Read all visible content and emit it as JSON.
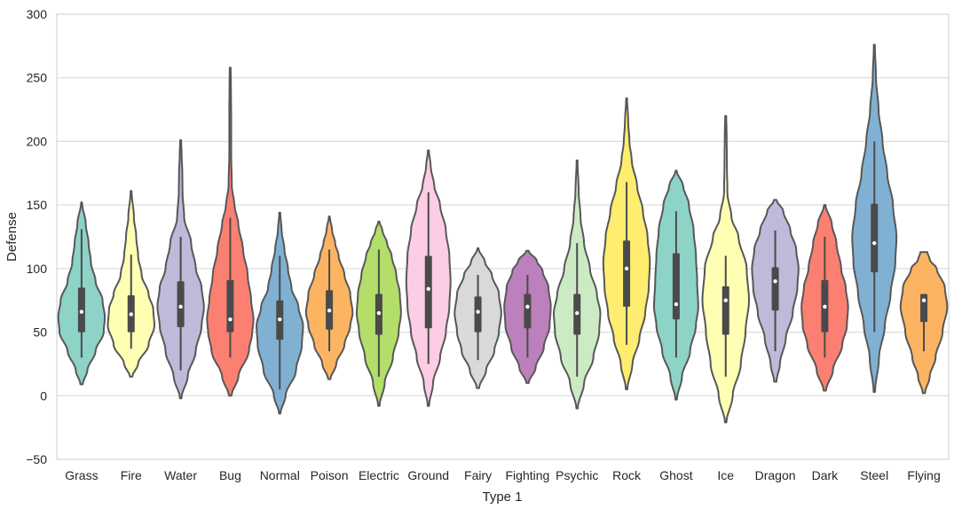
{
  "chart_data": {
    "type": "violin",
    "title": "",
    "xlabel": "Type 1",
    "ylabel": "Defense",
    "ylim": [
      -50,
      300
    ],
    "yticks": [
      -50,
      0,
      50,
      100,
      150,
      200,
      250,
      300
    ],
    "ytick_labels": [
      "−50",
      "0",
      "50",
      "100",
      "150",
      "200",
      "250",
      "300"
    ],
    "grid": true,
    "categories": [
      "Grass",
      "Fire",
      "Water",
      "Bug",
      "Normal",
      "Poison",
      "Electric",
      "Ground",
      "Fairy",
      "Fighting",
      "Psychic",
      "Rock",
      "Ghost",
      "Ice",
      "Dragon",
      "Dark",
      "Steel",
      "Flying"
    ],
    "colors": [
      "#8dd3c7",
      "#ffffb3",
      "#bebada",
      "#fb8072",
      "#80b1d3",
      "#fdb462",
      "#b3de69",
      "#fccde5",
      "#d9d9d9",
      "#bc80bd",
      "#ccebc5",
      "#ffed6f",
      "#8dd3c7",
      "#ffffb3",
      "#bebada",
      "#fb8072",
      "#80b1d3",
      "#fdb462"
    ],
    "series": [
      {
        "category": "Grass",
        "min": 30,
        "q1": 50,
        "median": 66,
        "q3": 85,
        "max": 131,
        "kde_min": 9,
        "kde_max": 152,
        "profile": [
          [
            9,
            0.05
          ],
          [
            20,
            0.25
          ],
          [
            35,
            0.6
          ],
          [
            50,
            0.95
          ],
          [
            62,
            1.0
          ],
          [
            75,
            0.9
          ],
          [
            90,
            0.6
          ],
          [
            105,
            0.4
          ],
          [
            120,
            0.3
          ],
          [
            135,
            0.18
          ],
          [
            152,
            0.02
          ]
        ]
      },
      {
        "category": "Fire",
        "min": 37,
        "q1": 50,
        "median": 64,
        "q3": 79,
        "max": 111,
        "kde_min": 15,
        "kde_max": 161,
        "profile": [
          [
            15,
            0.05
          ],
          [
            25,
            0.3
          ],
          [
            40,
            0.75
          ],
          [
            55,
            1.0
          ],
          [
            68,
            0.95
          ],
          [
            80,
            0.75
          ],
          [
            95,
            0.45
          ],
          [
            110,
            0.3
          ],
          [
            125,
            0.22
          ],
          [
            140,
            0.12
          ],
          [
            161,
            0.02
          ]
        ]
      },
      {
        "category": "Water",
        "min": 20,
        "q1": 54,
        "median": 70,
        "q3": 90,
        "max": 125,
        "kde_min": -2,
        "kde_max": 201,
        "profile": [
          [
            -2,
            0.03
          ],
          [
            15,
            0.3
          ],
          [
            35,
            0.65
          ],
          [
            55,
            0.9
          ],
          [
            70,
            1.0
          ],
          [
            85,
            0.9
          ],
          [
            100,
            0.65
          ],
          [
            120,
            0.45
          ],
          [
            140,
            0.15
          ],
          [
            160,
            0.08
          ],
          [
            175,
            0.07
          ],
          [
            190,
            0.04
          ],
          [
            201,
            0.02
          ]
        ]
      },
      {
        "category": "Bug",
        "min": 30,
        "q1": 50,
        "median": 60,
        "q3": 91,
        "max": 140,
        "kde_min": 0,
        "kde_max": 258,
        "profile": [
          [
            0,
            0.05
          ],
          [
            15,
            0.35
          ],
          [
            35,
            0.8
          ],
          [
            50,
            0.95
          ],
          [
            60,
            1.0
          ],
          [
            75,
            0.9
          ],
          [
            95,
            0.75
          ],
          [
            115,
            0.55
          ],
          [
            135,
            0.35
          ],
          [
            150,
            0.18
          ],
          [
            165,
            0.07
          ],
          [
            190,
            0.04
          ],
          [
            220,
            0.04
          ],
          [
            245,
            0.03
          ],
          [
            258,
            0.02
          ]
        ]
      },
      {
        "category": "Normal",
        "min": 5,
        "q1": 44,
        "median": 60,
        "q3": 75,
        "max": 110,
        "kde_min": -14,
        "kde_max": 144,
        "profile": [
          [
            -14,
            0.03
          ],
          [
            0,
            0.25
          ],
          [
            20,
            0.7
          ],
          [
            40,
            0.95
          ],
          [
            55,
            1.0
          ],
          [
            70,
            0.8
          ],
          [
            85,
            0.5
          ],
          [
            100,
            0.35
          ],
          [
            115,
            0.2
          ],
          [
            130,
            0.08
          ],
          [
            144,
            0.02
          ]
        ]
      },
      {
        "category": "Poison",
        "min": 35,
        "q1": 52,
        "median": 67,
        "q3": 83,
        "max": 115,
        "kde_min": 13,
        "kde_max": 141,
        "profile": [
          [
            13,
            0.05
          ],
          [
            25,
            0.3
          ],
          [
            40,
            0.65
          ],
          [
            55,
            0.9
          ],
          [
            65,
            1.0
          ],
          [
            80,
            0.9
          ],
          [
            95,
            0.65
          ],
          [
            110,
            0.4
          ],
          [
            120,
            0.25
          ],
          [
            130,
            0.12
          ],
          [
            141,
            0.02
          ]
        ]
      },
      {
        "category": "Electric",
        "min": 15,
        "q1": 48,
        "median": 65,
        "q3": 80,
        "max": 115,
        "kde_min": -8,
        "kde_max": 137,
        "profile": [
          [
            -8,
            0.03
          ],
          [
            10,
            0.25
          ],
          [
            30,
            0.6
          ],
          [
            50,
            0.85
          ],
          [
            65,
            0.95
          ],
          [
            80,
            0.9
          ],
          [
            95,
            0.75
          ],
          [
            110,
            0.55
          ],
          [
            120,
            0.35
          ],
          [
            130,
            0.15
          ],
          [
            137,
            0.02
          ]
        ]
      },
      {
        "category": "Ground",
        "min": 25,
        "q1": 53,
        "median": 84,
        "q3": 110,
        "max": 160,
        "kde_min": -8,
        "kde_max": 193,
        "profile": [
          [
            -8,
            0.03
          ],
          [
            10,
            0.2
          ],
          [
            30,
            0.5
          ],
          [
            50,
            0.75
          ],
          [
            70,
            0.9
          ],
          [
            90,
            0.95
          ],
          [
            110,
            0.9
          ],
          [
            130,
            0.75
          ],
          [
            150,
            0.5
          ],
          [
            165,
            0.25
          ],
          [
            180,
            0.1
          ],
          [
            193,
            0.02
          ]
        ]
      },
      {
        "category": "Fairy",
        "min": 28,
        "q1": 50,
        "median": 66,
        "q3": 78,
        "max": 95,
        "kde_min": 6,
        "kde_max": 116,
        "profile": [
          [
            6,
            0.05
          ],
          [
            20,
            0.35
          ],
          [
            35,
            0.7
          ],
          [
            50,
            0.9
          ],
          [
            65,
            1.0
          ],
          [
            80,
            0.9
          ],
          [
            95,
            0.6
          ],
          [
            105,
            0.3
          ],
          [
            116,
            0.02
          ]
        ]
      },
      {
        "category": "Fighting",
        "min": 30,
        "q1": 53,
        "median": 70,
        "q3": 80,
        "max": 95,
        "kde_min": 10,
        "kde_max": 114,
        "profile": [
          [
            10,
            0.05
          ],
          [
            22,
            0.35
          ],
          [
            38,
            0.7
          ],
          [
            55,
            0.95
          ],
          [
            70,
            1.0
          ],
          [
            85,
            0.9
          ],
          [
            98,
            0.65
          ],
          [
            106,
            0.4
          ],
          [
            114,
            0.05
          ]
        ]
      },
      {
        "category": "Psychic",
        "min": 15,
        "q1": 48,
        "median": 65,
        "q3": 80,
        "max": 120,
        "kde_min": -10,
        "kde_max": 185,
        "profile": [
          [
            -10,
            0.03
          ],
          [
            10,
            0.3
          ],
          [
            30,
            0.7
          ],
          [
            50,
            0.95
          ],
          [
            65,
            1.0
          ],
          [
            80,
            0.85
          ],
          [
            100,
            0.55
          ],
          [
            120,
            0.3
          ],
          [
            140,
            0.15
          ],
          [
            160,
            0.07
          ],
          [
            185,
            0.02
          ]
        ]
      },
      {
        "category": "Rock",
        "min": 40,
        "q1": 70,
        "median": 100,
        "q3": 122,
        "max": 168,
        "kde_min": 5,
        "kde_max": 234,
        "profile": [
          [
            5,
            0.03
          ],
          [
            25,
            0.25
          ],
          [
            45,
            0.55
          ],
          [
            65,
            0.8
          ],
          [
            85,
            0.95
          ],
          [
            105,
            1.0
          ],
          [
            125,
            0.9
          ],
          [
            145,
            0.7
          ],
          [
            165,
            0.45
          ],
          [
            185,
            0.22
          ],
          [
            200,
            0.12
          ],
          [
            215,
            0.07
          ],
          [
            234,
            0.02
          ]
        ]
      },
      {
        "category": "Ghost",
        "min": 30,
        "q1": 60,
        "median": 72,
        "q3": 112,
        "max": 145,
        "kde_min": -3,
        "kde_max": 177,
        "profile": [
          [
            -3,
            0.03
          ],
          [
            15,
            0.25
          ],
          [
            35,
            0.6
          ],
          [
            55,
            0.85
          ],
          [
            70,
            0.95
          ],
          [
            90,
            0.9
          ],
          [
            110,
            0.85
          ],
          [
            130,
            0.75
          ],
          [
            150,
            0.55
          ],
          [
            165,
            0.3
          ],
          [
            177,
            0.02
          ]
        ]
      },
      {
        "category": "Ice",
        "min": 15,
        "q1": 48,
        "median": 75,
        "q3": 86,
        "max": 110,
        "kde_min": -21,
        "kde_max": 220,
        "profile": [
          [
            -21,
            0.03
          ],
          [
            0,
            0.3
          ],
          [
            25,
            0.65
          ],
          [
            50,
            0.85
          ],
          [
            75,
            1.0
          ],
          [
            100,
            0.9
          ],
          [
            125,
            0.55
          ],
          [
            140,
            0.25
          ],
          [
            160,
            0.07
          ],
          [
            185,
            0.05
          ],
          [
            205,
            0.04
          ],
          [
            220,
            0.02
          ]
        ]
      },
      {
        "category": "Dragon",
        "min": 35,
        "q1": 67,
        "median": 90,
        "q3": 101,
        "max": 130,
        "kde_min": 11,
        "kde_max": 154,
        "profile": [
          [
            11,
            0.05
          ],
          [
            25,
            0.2
          ],
          [
            45,
            0.45
          ],
          [
            65,
            0.75
          ],
          [
            85,
            0.95
          ],
          [
            100,
            1.0
          ],
          [
            115,
            0.9
          ],
          [
            130,
            0.65
          ],
          [
            145,
            0.35
          ],
          [
            154,
            0.05
          ]
        ]
      },
      {
        "category": "Dark",
        "min": 30,
        "q1": 50,
        "median": 70,
        "q3": 91,
        "max": 125,
        "kde_min": 4,
        "kde_max": 150,
        "profile": [
          [
            4,
            0.05
          ],
          [
            20,
            0.35
          ],
          [
            40,
            0.75
          ],
          [
            55,
            0.95
          ],
          [
            70,
            1.0
          ],
          [
            85,
            0.9
          ],
          [
            100,
            0.7
          ],
          [
            120,
            0.5
          ],
          [
            135,
            0.3
          ],
          [
            150,
            0.03
          ]
        ]
      },
      {
        "category": "Steel",
        "min": 50,
        "q1": 97,
        "median": 120,
        "q3": 151,
        "max": 200,
        "kde_min": 3,
        "kde_max": 276,
        "profile": [
          [
            3,
            0.03
          ],
          [
            30,
            0.2
          ],
          [
            55,
            0.45
          ],
          [
            80,
            0.7
          ],
          [
            105,
            0.9
          ],
          [
            125,
            0.95
          ],
          [
            150,
            0.8
          ],
          [
            175,
            0.55
          ],
          [
            200,
            0.35
          ],
          [
            225,
            0.18
          ],
          [
            250,
            0.07
          ],
          [
            276,
            0.02
          ]
        ]
      },
      {
        "category": "Flying",
        "min": 35,
        "q1": 58,
        "median": 75,
        "q3": 80,
        "max": 80,
        "kde_min": 2,
        "kde_max": 113,
        "profile": [
          [
            2,
            0.05
          ],
          [
            15,
            0.25
          ],
          [
            30,
            0.5
          ],
          [
            50,
            0.8
          ],
          [
            70,
            1.0
          ],
          [
            85,
            0.9
          ],
          [
            100,
            0.55
          ],
          [
            107,
            0.25
          ],
          [
            113,
            0.15
          ]
        ]
      }
    ]
  }
}
